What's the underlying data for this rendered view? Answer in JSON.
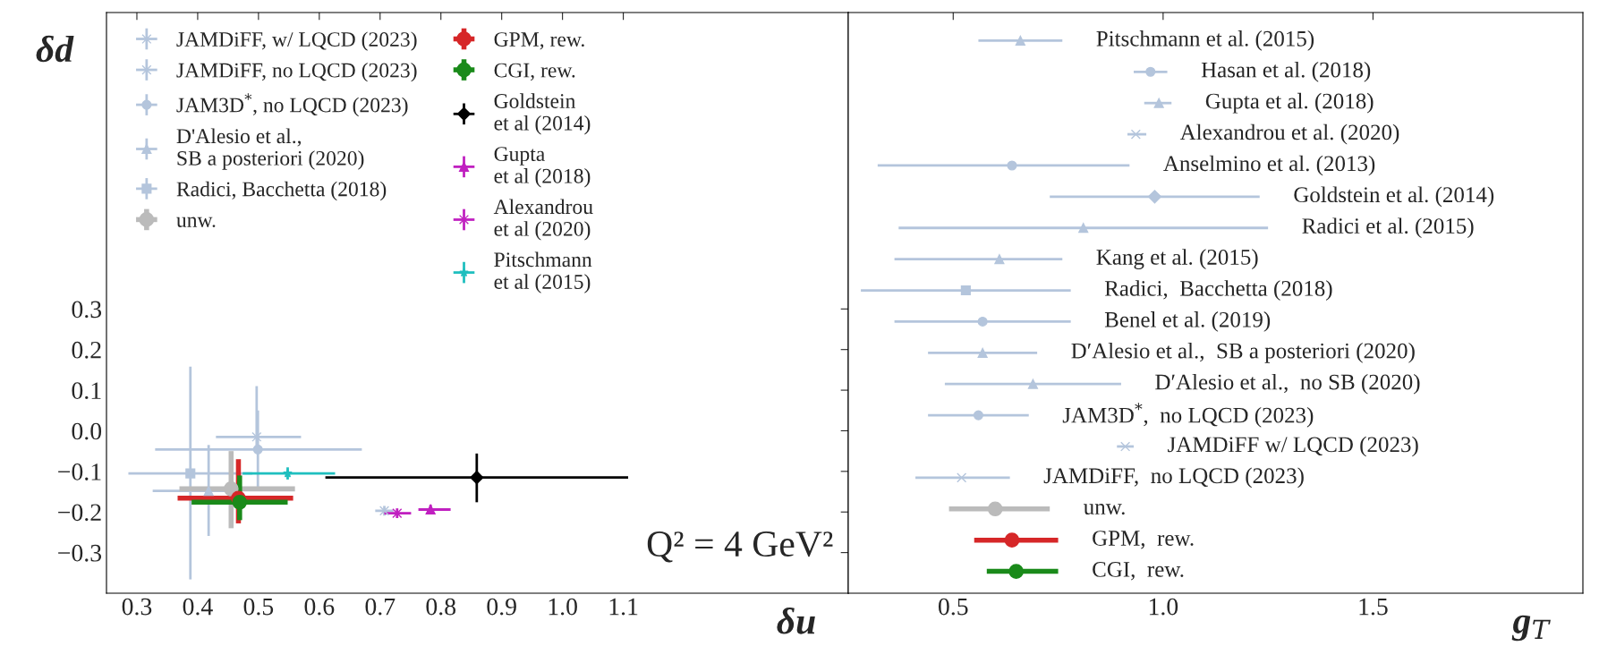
{
  "chart_data": [
    {
      "type": "scatter",
      "xlabel": "δu",
      "ylabel": "δd",
      "xlim": [
        0.25,
        1.47
      ],
      "ylim": [
        -0.4,
        1.03
      ],
      "xticks": [
        0.3,
        0.4,
        0.5,
        0.6,
        0.7,
        0.8,
        0.9,
        {
          "value": 1.0,
          "label": "1.0"
        },
        1.1
      ],
      "yticks": [
        {
          "value": -0.3,
          "label": "−0.3"
        },
        {
          "value": -0.2,
          "label": "−0.2"
        },
        {
          "value": -0.1,
          "label": "−0.1"
        },
        {
          "value": 0,
          "label": "0.0"
        },
        0.1,
        0.2,
        0.3
      ],
      "grid": false,
      "legend": "top left",
      "annotations": [
        "Q² = 4 GeV²"
      ],
      "series": [
        {
          "name": "JAMDiFF, w/ LQCD (2023)",
          "color": "#b4c5dc",
          "marker": "cross",
          "x": [
            0.707
          ],
          "values": [
            -0.197
          ],
          "xerrors": [
            0.015
          ],
          "errors": [
            0.012
          ]
        },
        {
          "name": "JAMDiFF, no LQCD (2023)",
          "color": "#b4c5dc",
          "marker": "cross",
          "x": [
            0.497
          ],
          "values": [
            -0.015
          ],
          "xerrors": [
            [
              0.43,
              0.57
            ]
          ],
          "errors": [
            [
              -0.05,
              0.11
            ]
          ]
        },
        {
          "name": "JAM3D$^{*}$, no LQCD (2023)",
          "color": "#b4c5dc",
          "marker": "circle",
          "x": [
            0.499
          ],
          "values": [
            -0.046
          ],
          "xerrors": [
            [
              0.33,
              0.67
            ]
          ],
          "errors": [
            [
              -0.14,
              0.05
            ]
          ]
        },
        {
          "name": "D'Alesio et al.,\nSB a posteriori (2020)",
          "color": "#b4c5dc",
          "marker": "triangle",
          "x": [
            0.418
          ],
          "values": [
            -0.148
          ],
          "xerrors": [
            [
              0.326,
              0.46
            ]
          ],
          "errors": [
            [
              -0.259,
              -0.035
            ]
          ]
        },
        {
          "name": "Radici, Bacchetta (2018)",
          "color": "#b4c5dc",
          "marker": "square",
          "x": [
            0.388
          ],
          "values": [
            -0.105
          ],
          "xerrors": [
            [
              0.286,
              0.49
            ]
          ],
          "errors": [
            [
              -0.366,
              0.158
            ]
          ]
        },
        {
          "name": "unw.",
          "color": "#bbbbbb",
          "marker": "circle",
          "x": [
            0.455
          ],
          "values": [
            -0.143
          ],
          "xerrors": [
            [
              0.37,
              0.56
            ]
          ],
          "errors": [
            [
              -0.24,
              -0.05
            ]
          ]
        },
        {
          "name": "GPM, rew.",
          "color": "#d62728",
          "marker": "circle",
          "x": [
            0.467
          ],
          "values": [
            -0.166
          ],
          "xerrors": [
            [
              0.367,
              0.557
            ]
          ],
          "errors": [
            [
              -0.228,
              -0.07
            ]
          ]
        },
        {
          "name": "CGI, rew.",
          "color": "#1a8a1a",
          "marker": "circle",
          "x": [
            0.469
          ],
          "values": [
            -0.176
          ],
          "xerrors": [
            [
              0.39,
              0.548
            ]
          ],
          "errors": [
            [
              -0.22,
              -0.11
            ]
          ]
        },
        {
          "name": "Goldstein\net al (2014)",
          "color": "#000000",
          "marker": "diamond",
          "x": [
            0.859
          ],
          "values": [
            -0.115
          ],
          "xerrors": [
            [
              0.61,
              1.108
            ]
          ],
          "errors": [
            [
              -0.176,
              -0.056
            ]
          ]
        },
        {
          "name": "Gupta\net al (2018)",
          "color": "#c020c0",
          "marker": "triangle",
          "x": [
            0.783
          ],
          "values": [
            -0.194
          ],
          "xerrors": [
            [
              0.763,
              0.816
            ]
          ],
          "errors": [
            0.012
          ]
        },
        {
          "name": "Alexandrou\net al (2020)",
          "color": "#c020c0",
          "marker": "cross",
          "x": [
            0.728
          ],
          "values": [
            -0.203
          ],
          "xerrors": [
            [
              0.707,
              0.751
            ]
          ],
          "errors": [
            0.012
          ]
        },
        {
          "name": "Pitschmann\net al (2015)",
          "color": "#1fbfbf",
          "marker": "star",
          "x": [
            0.548
          ],
          "values": [
            -0.105
          ],
          "xerrors": [
            [
              0.474,
              0.626
            ]
          ],
          "errors": [
            0.015
          ]
        }
      ]
    },
    {
      "type": "scatter",
      "orientation": "horizontal",
      "xlabel": "g$_{T}$",
      "xlim": [
        0.25,
        2.0
      ],
      "xticks": [
        0.5,
        {
          "value": 1.0,
          "label": "1.0"
        },
        1.5
      ],
      "tick_labels": "x",
      "legend": "right",
      "categories": [
        null,
        null,
        null,
        null,
        null,
        null,
        null,
        null,
        null,
        null,
        null,
        null,
        null,
        null,
        null,
        null,
        null,
        null
      ],
      "series": [
        {
          "name": "Pitschmann et al. (2015)",
          "color": "#b4c5dc",
          "marker": "triangle",
          "values": [
            0.66,
            null,
            null,
            null,
            null,
            null,
            null,
            null,
            null,
            null,
            null,
            null,
            null,
            null,
            null,
            null,
            null,
            null
          ],
          "errors": [
            [
              0.56,
              0.76
            ],
            null,
            null,
            null,
            null,
            null,
            null,
            null,
            null,
            null,
            null,
            null,
            null,
            null,
            null,
            null,
            null,
            null
          ]
        },
        {
          "name": "Hasan et al. (2018)",
          "color": "#b4c5dc",
          "marker": "circle",
          "values": [
            null,
            0.97,
            null,
            null,
            null,
            null,
            null,
            null,
            null,
            null,
            null,
            null,
            null,
            null,
            null,
            null,
            null,
            null
          ],
          "errors": [
            null,
            [
              0.93,
              1.01
            ],
            null,
            null,
            null,
            null,
            null,
            null,
            null,
            null,
            null,
            null,
            null,
            null,
            null,
            null,
            null,
            null
          ]
        },
        {
          "name": "Gupta et al. (2018)",
          "color": "#b4c5dc",
          "marker": "triangle",
          "values": [
            null,
            null,
            0.99,
            null,
            null,
            null,
            null,
            null,
            null,
            null,
            null,
            null,
            null,
            null,
            null,
            null,
            null,
            null
          ],
          "errors": [
            null,
            null,
            [
              0.955,
              1.02
            ],
            null,
            null,
            null,
            null,
            null,
            null,
            null,
            null,
            null,
            null,
            null,
            null,
            null,
            null,
            null
          ]
        },
        {
          "name": "Alexandrou et al. (2020)",
          "color": "#b4c5dc",
          "marker": "cross",
          "values": [
            null,
            null,
            null,
            0.935,
            null,
            null,
            null,
            null,
            null,
            null,
            null,
            null,
            null,
            null,
            null,
            null,
            null,
            null
          ],
          "errors": [
            null,
            null,
            null,
            [
              0.915,
              0.96
            ],
            null,
            null,
            null,
            null,
            null,
            null,
            null,
            null,
            null,
            null,
            null,
            null,
            null,
            null
          ]
        },
        {
          "name": "Anselmino et al. (2013)",
          "color": "#b4c5dc",
          "marker": "circle",
          "values": [
            null,
            null,
            null,
            null,
            0.64,
            null,
            null,
            null,
            null,
            null,
            null,
            null,
            null,
            null,
            null,
            null,
            null,
            null
          ],
          "errors": [
            null,
            null,
            null,
            null,
            [
              0.32,
              0.92
            ],
            null,
            null,
            null,
            null,
            null,
            null,
            null,
            null,
            null,
            null,
            null,
            null,
            null
          ]
        },
        {
          "name": "Goldstein et al. (2014)",
          "color": "#b4c5dc",
          "marker": "diamond",
          "values": [
            null,
            null,
            null,
            null,
            null,
            0.98,
            null,
            null,
            null,
            null,
            null,
            null,
            null,
            null,
            null,
            null,
            null,
            null
          ],
          "errors": [
            null,
            null,
            null,
            null,
            null,
            [
              0.73,
              1.23
            ],
            null,
            null,
            null,
            null,
            null,
            null,
            null,
            null,
            null,
            null,
            null,
            null
          ]
        },
        {
          "name": "Radici et al. (2015)",
          "color": "#b4c5dc",
          "marker": "triangle",
          "values": [
            null,
            null,
            null,
            null,
            null,
            null,
            0.81,
            null,
            null,
            null,
            null,
            null,
            null,
            null,
            null,
            null,
            null,
            null
          ],
          "errors": [
            null,
            null,
            null,
            null,
            null,
            null,
            [
              0.37,
              1.25
            ],
            null,
            null,
            null,
            null,
            null,
            null,
            null,
            null,
            null,
            null,
            null
          ]
        },
        {
          "name": "Kang et al. (2015)",
          "color": "#b4c5dc",
          "marker": "triangle",
          "values": [
            null,
            null,
            null,
            null,
            null,
            null,
            null,
            0.61,
            null,
            null,
            null,
            null,
            null,
            null,
            null,
            null,
            null,
            null
          ],
          "errors": [
            null,
            null,
            null,
            null,
            null,
            null,
            null,
            [
              0.36,
              0.76
            ],
            null,
            null,
            null,
            null,
            null,
            null,
            null,
            null,
            null,
            null
          ]
        },
        {
          "name": "Radici,  Bacchetta (2018)",
          "color": "#b4c5dc",
          "marker": "square",
          "values": [
            null,
            null,
            null,
            null,
            null,
            null,
            null,
            null,
            0.53,
            null,
            null,
            null,
            null,
            null,
            null,
            null,
            null,
            null
          ],
          "errors": [
            null,
            null,
            null,
            null,
            null,
            null,
            null,
            null,
            [
              0.28,
              0.78
            ],
            null,
            null,
            null,
            null,
            null,
            null,
            null,
            null,
            null
          ]
        },
        {
          "name": "Benel et al. (2019)",
          "color": "#b4c5dc",
          "marker": "circle",
          "values": [
            null,
            null,
            null,
            null,
            null,
            null,
            null,
            null,
            null,
            0.57,
            null,
            null,
            null,
            null,
            null,
            null,
            null,
            null
          ],
          "errors": [
            null,
            null,
            null,
            null,
            null,
            null,
            null,
            null,
            null,
            [
              0.36,
              0.78
            ],
            null,
            null,
            null,
            null,
            null,
            null,
            null,
            null
          ]
        },
        {
          "name": "D′Alesio et al.,  SB a posteriori (2020)",
          "color": "#b4c5dc",
          "marker": "triangle",
          "values": [
            null,
            null,
            null,
            null,
            null,
            null,
            null,
            null,
            null,
            null,
            0.57,
            null,
            null,
            null,
            null,
            null,
            null,
            null
          ],
          "errors": [
            null,
            null,
            null,
            null,
            null,
            null,
            null,
            null,
            null,
            null,
            [
              0.44,
              0.7
            ],
            null,
            null,
            null,
            null,
            null,
            null,
            null
          ]
        },
        {
          "name": "D′Alesio et al.,  no SB (2020)",
          "color": "#b4c5dc",
          "marker": "triangle",
          "values": [
            null,
            null,
            null,
            null,
            null,
            null,
            null,
            null,
            null,
            null,
            null,
            0.69,
            null,
            null,
            null,
            null,
            null,
            null
          ],
          "errors": [
            null,
            null,
            null,
            null,
            null,
            null,
            null,
            null,
            null,
            null,
            null,
            [
              0.48,
              0.9
            ],
            null,
            null,
            null,
            null,
            null,
            null
          ]
        },
        {
          "name": "JAM3D$^{*}$,  no LQCD (2023)",
          "color": "#b4c5dc",
          "marker": "circle",
          "values": [
            null,
            null,
            null,
            null,
            null,
            null,
            null,
            null,
            null,
            null,
            null,
            null,
            0.56,
            null,
            null,
            null,
            null,
            null
          ],
          "errors": [
            null,
            null,
            null,
            null,
            null,
            null,
            null,
            null,
            null,
            null,
            null,
            null,
            [
              0.44,
              0.68
            ],
            null,
            null,
            null,
            null,
            null
          ]
        },
        {
          "name": "JAMDiFF w/ LQCD (2023)",
          "color": "#b4c5dc",
          "marker": "cross",
          "values": [
            null,
            null,
            null,
            null,
            null,
            null,
            null,
            null,
            null,
            null,
            null,
            null,
            null,
            0.91,
            null,
            null,
            null,
            null
          ],
          "errors": [
            null,
            null,
            null,
            null,
            null,
            null,
            null,
            null,
            null,
            null,
            null,
            null,
            null,
            [
              0.89,
              0.93
            ],
            null,
            null,
            null,
            null
          ]
        },
        {
          "name": "JAMDiFF,  no LQCD (2023)",
          "color": "#b4c5dc",
          "marker": "cross",
          "values": [
            null,
            null,
            null,
            null,
            null,
            null,
            null,
            null,
            null,
            null,
            null,
            null,
            null,
            null,
            0.52,
            null,
            null,
            null
          ],
          "errors": [
            null,
            null,
            null,
            null,
            null,
            null,
            null,
            null,
            null,
            null,
            null,
            null,
            null,
            null,
            [
              0.41,
              0.635
            ],
            null,
            null,
            null
          ]
        },
        {
          "name": "unw.",
          "color": "#bbbbbb",
          "marker": "circle",
          "values": [
            null,
            null,
            null,
            null,
            null,
            null,
            null,
            null,
            null,
            null,
            null,
            null,
            null,
            null,
            null,
            0.6,
            null,
            null
          ],
          "errors": [
            null,
            null,
            null,
            null,
            null,
            null,
            null,
            null,
            null,
            null,
            null,
            null,
            null,
            null,
            null,
            [
              0.49,
              0.73
            ],
            null,
            null
          ]
        },
        {
          "name": "GPM,  rew.",
          "color": "#d62728",
          "marker": "circle",
          "values": [
            null,
            null,
            null,
            null,
            null,
            null,
            null,
            null,
            null,
            null,
            null,
            null,
            null,
            null,
            null,
            null,
            0.64,
            null
          ],
          "errors": [
            null,
            null,
            null,
            null,
            null,
            null,
            null,
            null,
            null,
            null,
            null,
            null,
            null,
            null,
            null,
            null,
            [
              0.55,
              0.75
            ],
            null
          ]
        },
        {
          "name": "CGI,  rew.",
          "color": "#1a8a1a",
          "marker": "circle",
          "values": [
            null,
            null,
            null,
            null,
            null,
            null,
            null,
            null,
            null,
            null,
            null,
            null,
            null,
            null,
            null,
            null,
            null,
            0.65
          ],
          "errors": [
            null,
            null,
            null,
            null,
            null,
            null,
            null,
            null,
            null,
            null,
            null,
            null,
            null,
            null,
            null,
            null,
            null,
            [
              0.58,
              0.75
            ]
          ]
        }
      ]
    }
  ]
}
